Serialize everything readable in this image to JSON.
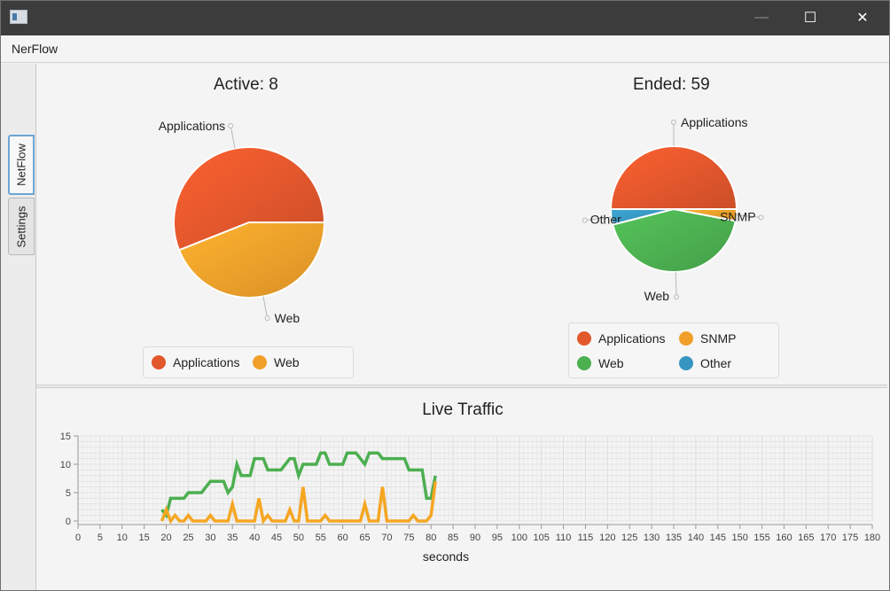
{
  "window": {
    "minimize": "—",
    "maximize": "☐",
    "close": "✕"
  },
  "menu": {
    "items": [
      "NerFlow"
    ]
  },
  "tabs": [
    {
      "label": "NetFlow",
      "selected": true
    },
    {
      "label": "Settings",
      "selected": false
    }
  ],
  "colors": {
    "applications": "#e2572c",
    "web_orange": "#f0a02a",
    "web_green": "#4caf50",
    "snmp": "#f0a02a",
    "other": "#3796c0"
  },
  "chart_data": [
    {
      "type": "pie",
      "title": "Active: 8",
      "slices": [
        {
          "label": "Applications",
          "value": 56,
          "color": "#e2572c"
        },
        {
          "label": "Web",
          "value": 44,
          "color": "#f0a02a"
        }
      ],
      "legend": "bottom"
    },
    {
      "type": "pie",
      "title": "Ended: 59",
      "slices": [
        {
          "label": "Applications",
          "value": 50,
          "color": "#e2572c"
        },
        {
          "label": "Other",
          "value": 4,
          "color": "#3796c0"
        },
        {
          "label": "Web",
          "value": 43,
          "color": "#4caf50"
        },
        {
          "label": "SNMP",
          "value": 3,
          "color": "#f0a02a"
        }
      ],
      "legend_order": [
        "Applications",
        "SNMP",
        "Web",
        "Other"
      ],
      "legend": "bottom"
    },
    {
      "type": "line",
      "title": "Live Traffic",
      "xlabel": "seconds",
      "ylabel": "",
      "xlim": [
        0,
        180
      ],
      "ylim": [
        0,
        15
      ],
      "xticks": [
        0,
        5,
        10,
        15,
        20,
        25,
        30,
        35,
        40,
        45,
        50,
        55,
        60,
        65,
        70,
        75,
        80,
        85,
        90,
        95,
        100,
        105,
        110,
        115,
        120,
        125,
        130,
        135,
        140,
        145,
        150,
        155,
        160,
        165,
        170,
        175,
        180
      ],
      "yticks": [
        0,
        5,
        10,
        15
      ],
      "grid": true,
      "series": [
        {
          "color": "#4caf50",
          "x": [
            19,
            20,
            21,
            22,
            23,
            24,
            25,
            26,
            27,
            28,
            29,
            30,
            31,
            32,
            33,
            34,
            35,
            36,
            37,
            38,
            39,
            40,
            41,
            42,
            43,
            44,
            45,
            46,
            47,
            48,
            49,
            50,
            51,
            52,
            53,
            54,
            55,
            56,
            57,
            58,
            59,
            60,
            61,
            62,
            63,
            64,
            65,
            66,
            67,
            68,
            69,
            70,
            71,
            72,
            73,
            74,
            75,
            76,
            77,
            78,
            79,
            80,
            81
          ],
          "values": [
            2,
            1,
            4,
            4,
            4,
            4,
            5,
            5,
            5,
            5,
            6,
            7,
            7,
            7,
            7,
            5,
            6,
            10,
            8,
            8,
            8,
            11,
            11,
            11,
            9,
            9,
            9,
            9,
            10,
            11,
            11,
            8,
            10,
            10,
            10,
            10,
            12,
            12,
            10,
            10,
            10,
            10,
            12,
            12,
            12,
            11,
            10,
            12,
            12,
            12,
            11,
            11,
            11,
            11,
            11,
            11,
            9,
            9,
            9,
            9,
            4,
            4,
            8
          ]
        },
        {
          "color": "#f5a623",
          "x": [
            19,
            20,
            21,
            22,
            23,
            24,
            25,
            26,
            27,
            28,
            29,
            30,
            31,
            32,
            33,
            34,
            35,
            36,
            37,
            38,
            39,
            40,
            41,
            42,
            43,
            44,
            45,
            46,
            47,
            48,
            49,
            50,
            51,
            52,
            53,
            54,
            55,
            56,
            57,
            58,
            59,
            60,
            61,
            62,
            63,
            64,
            65,
            66,
            67,
            68,
            69,
            70,
            71,
            72,
            73,
            74,
            75,
            76,
            77,
            78,
            79,
            80,
            81
          ],
          "values": [
            0,
            2,
            0,
            1,
            0,
            0,
            1,
            0,
            0,
            0,
            0,
            1,
            0,
            0,
            0,
            0,
            3,
            0,
            0,
            0,
            0,
            0,
            4,
            0,
            1,
            0,
            0,
            0,
            0,
            2,
            0,
            0,
            6,
            0,
            0,
            0,
            0,
            1,
            0,
            0,
            0,
            0,
            0,
            0,
            0,
            0,
            3,
            0,
            0,
            0,
            6,
            0,
            0,
            0,
            0,
            0,
            0,
            1,
            0,
            0,
            0,
            1,
            7
          ]
        }
      ]
    }
  ]
}
